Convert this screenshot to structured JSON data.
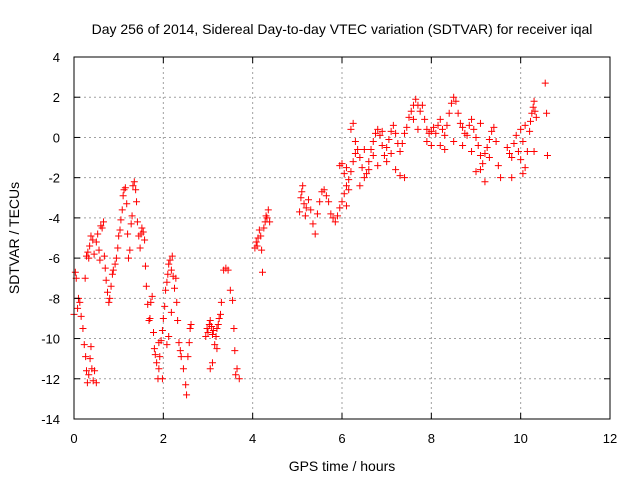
{
  "chart_data": {
    "type": "scatter",
    "title": "Day 256 of 2014, Sidereal Day-to-day VTEC variation (SDTVAR) for receiver iqal",
    "xlabel": "GPS time / hours",
    "ylabel": "SDTVAR / TECUs",
    "xlim": [
      0,
      12
    ],
    "ylim": [
      -14,
      4
    ],
    "xticks": [
      0,
      2,
      4,
      6,
      8,
      10,
      12
    ],
    "yticks": [
      -14,
      -12,
      -10,
      -8,
      -6,
      -4,
      -2,
      0,
      2,
      4
    ],
    "grid": true,
    "marker": "+",
    "color": "#ff0000",
    "series": [
      {
        "name": "SDTVAR",
        "points": [
          [
            0.0,
            -8.8
          ],
          [
            0.03,
            -6.7
          ],
          [
            0.05,
            -7.0
          ],
          [
            0.08,
            -8.5
          ],
          [
            0.1,
            -8.0
          ],
          [
            0.13,
            -8.2
          ],
          [
            0.16,
            -8.9
          ],
          [
            0.2,
            -9.5
          ],
          [
            0.23,
            -10.3
          ],
          [
            0.26,
            -10.9
          ],
          [
            0.28,
            -11.6
          ],
          [
            0.3,
            -12.2
          ],
          [
            0.33,
            -11.8
          ],
          [
            0.36,
            -11.0
          ],
          [
            0.38,
            -10.4
          ],
          [
            0.4,
            -11.5
          ],
          [
            0.43,
            -12.1
          ],
          [
            0.46,
            -11.6
          ],
          [
            0.5,
            -12.2
          ],
          [
            0.25,
            -7.0
          ],
          [
            0.28,
            -5.9
          ],
          [
            0.31,
            -5.7
          ],
          [
            0.33,
            -6.0
          ],
          [
            0.35,
            -5.4
          ],
          [
            0.38,
            -4.9
          ],
          [
            0.42,
            -5.1
          ],
          [
            0.45,
            -5.8
          ],
          [
            0.5,
            -5.2
          ],
          [
            0.53,
            -4.8
          ],
          [
            0.56,
            -5.6
          ],
          [
            0.58,
            -6.1
          ],
          [
            0.6,
            -4.4
          ],
          [
            0.63,
            -4.5
          ],
          [
            0.66,
            -4.2
          ],
          [
            0.68,
            -5.9
          ],
          [
            0.7,
            -6.5
          ],
          [
            0.72,
            -7.1
          ],
          [
            0.75,
            -7.7
          ],
          [
            0.78,
            -8.2
          ],
          [
            0.8,
            -8.0
          ],
          [
            0.83,
            -7.4
          ],
          [
            0.86,
            -6.8
          ],
          [
            0.88,
            -6.6
          ],
          [
            0.92,
            -6.3
          ],
          [
            0.95,
            -6.0
          ],
          [
            0.98,
            -5.5
          ],
          [
            1.0,
            -4.9
          ],
          [
            1.03,
            -4.6
          ],
          [
            1.05,
            -4.1
          ],
          [
            1.08,
            -3.6
          ],
          [
            1.1,
            -2.9
          ],
          [
            1.12,
            -2.6
          ],
          [
            1.15,
            -2.5
          ],
          [
            1.18,
            -3.3
          ],
          [
            1.2,
            -4.8
          ],
          [
            1.22,
            -6.0
          ],
          [
            1.25,
            -5.6
          ],
          [
            1.28,
            -4.3
          ],
          [
            1.3,
            -3.9
          ],
          [
            1.32,
            -2.4
          ],
          [
            1.35,
            -2.2
          ],
          [
            1.38,
            -2.6
          ],
          [
            1.4,
            -3.2
          ],
          [
            1.42,
            -4.2
          ],
          [
            1.45,
            -4.9
          ],
          [
            1.48,
            -5.5
          ],
          [
            1.5,
            -4.8
          ],
          [
            1.52,
            -4.5
          ],
          [
            1.55,
            -4.7
          ],
          [
            1.58,
            -5.1
          ],
          [
            1.6,
            -6.4
          ],
          [
            1.62,
            -7.4
          ],
          [
            1.65,
            -8.3
          ],
          [
            1.68,
            -9.1
          ],
          [
            1.7,
            -9.0
          ],
          [
            1.72,
            -8.2
          ],
          [
            1.75,
            -7.9
          ],
          [
            1.78,
            -9.7
          ],
          [
            1.8,
            -10.5
          ],
          [
            1.82,
            -10.8
          ],
          [
            1.85,
            -11.2
          ],
          [
            1.88,
            -12.0
          ],
          [
            1.9,
            -11.5
          ],
          [
            1.92,
            -10.9
          ],
          [
            1.95,
            -10.1
          ],
          [
            1.98,
            -9.6
          ],
          [
            2.0,
            -9.0
          ],
          [
            2.03,
            -8.4
          ],
          [
            2.05,
            -7.6
          ],
          [
            2.08,
            -7.2
          ],
          [
            2.1,
            -6.8
          ],
          [
            2.12,
            -6.3
          ],
          [
            2.15,
            -6.1
          ],
          [
            2.18,
            -6.6
          ],
          [
            2.2,
            -5.9
          ],
          [
            2.22,
            -6.9
          ],
          [
            2.25,
            -7.5
          ],
          [
            2.28,
            -7.0
          ],
          [
            2.3,
            -8.2
          ],
          [
            2.32,
            -9.1
          ],
          [
            2.35,
            -10.2
          ],
          [
            2.38,
            -10.6
          ],
          [
            2.4,
            -10.9
          ],
          [
            2.45,
            -11.5
          ],
          [
            2.5,
            -12.3
          ],
          [
            2.52,
            -12.8
          ],
          [
            2.55,
            -10.9
          ],
          [
            2.58,
            -10.2
          ],
          [
            2.6,
            -9.5
          ],
          [
            2.62,
            -9.3
          ],
          [
            2.08,
            -10.3
          ],
          [
            2.12,
            -9.9
          ],
          [
            2.18,
            -8.7
          ],
          [
            1.98,
            -12.0
          ],
          [
            1.9,
            -10.2
          ],
          [
            2.95,
            -9.9
          ],
          [
            2.98,
            -9.5
          ],
          [
            3.0,
            -9.7
          ],
          [
            3.03,
            -9.3
          ],
          [
            3.05,
            -9.1
          ],
          [
            3.08,
            -9.4
          ],
          [
            3.1,
            -9.8
          ],
          [
            3.12,
            -9.6
          ],
          [
            3.15,
            -10.3
          ],
          [
            3.18,
            -9.9
          ],
          [
            3.2,
            -9.5
          ],
          [
            3.23,
            -9.3
          ],
          [
            3.25,
            -9.0
          ],
          [
            3.28,
            -8.8
          ],
          [
            3.3,
            -8.2
          ],
          [
            3.05,
            -11.5
          ],
          [
            3.1,
            -11.2
          ],
          [
            3.2,
            -10.5
          ],
          [
            3.35,
            -6.6
          ],
          [
            3.4,
            -6.5
          ],
          [
            3.45,
            -6.6
          ],
          [
            3.5,
            -7.6
          ],
          [
            3.55,
            -8.1
          ],
          [
            3.58,
            -9.5
          ],
          [
            3.6,
            -10.6
          ],
          [
            3.62,
            -11.8
          ],
          [
            3.65,
            -11.5
          ],
          [
            3.7,
            -12.0
          ],
          [
            4.05,
            -5.5
          ],
          [
            4.08,
            -5.2
          ],
          [
            4.1,
            -5.4
          ],
          [
            4.12,
            -5.0
          ],
          [
            4.15,
            -4.6
          ],
          [
            4.18,
            -4.9
          ],
          [
            4.2,
            -5.6
          ],
          [
            4.22,
            -6.7
          ],
          [
            4.25,
            -4.5
          ],
          [
            4.28,
            -4.2
          ],
          [
            4.3,
            -3.9
          ],
          [
            4.32,
            -4.0
          ],
          [
            4.35,
            -3.6
          ],
          [
            4.38,
            -4.2
          ],
          [
            5.05,
            -3.7
          ],
          [
            5.08,
            -3.0
          ],
          [
            5.1,
            -2.7
          ],
          [
            5.12,
            -2.4
          ],
          [
            5.15,
            -3.3
          ],
          [
            5.18,
            -3.9
          ],
          [
            5.2,
            -3.5
          ],
          [
            5.25,
            -3.1
          ],
          [
            5.3,
            -3.6
          ],
          [
            5.35,
            -4.3
          ],
          [
            5.4,
            -4.8
          ],
          [
            5.45,
            -3.8
          ],
          [
            5.5,
            -3.2
          ],
          [
            5.55,
            -2.7
          ],
          [
            5.6,
            -2.6
          ],
          [
            5.65,
            -2.9
          ],
          [
            5.7,
            -3.2
          ],
          [
            5.75,
            -3.8
          ],
          [
            5.8,
            -4.0
          ],
          [
            5.85,
            -4.2
          ],
          [
            5.9,
            -3.9
          ],
          [
            5.95,
            -3.5
          ],
          [
            6.0,
            -3.2
          ],
          [
            6.05,
            -2.8
          ],
          [
            6.1,
            -2.4
          ],
          [
            6.15,
            -2.1
          ],
          [
            6.2,
            -1.7
          ],
          [
            6.25,
            -1.2
          ],
          [
            6.3,
            -0.8
          ],
          [
            6.35,
            -0.6
          ],
          [
            6.4,
            -1.0
          ],
          [
            6.45,
            -1.5
          ],
          [
            6.5,
            -2.0
          ],
          [
            6.55,
            -1.8
          ],
          [
            6.6,
            -1.2
          ],
          [
            6.65,
            -0.6
          ],
          [
            6.7,
            -0.2
          ],
          [
            6.75,
            0.2
          ],
          [
            6.8,
            0.4
          ],
          [
            6.85,
            0.1
          ],
          [
            6.9,
            -0.4
          ],
          [
            6.95,
            -0.9
          ],
          [
            7.0,
            -0.5
          ],
          [
            7.05,
            -0.1
          ],
          [
            7.1,
            0.3
          ],
          [
            7.15,
            0.6
          ],
          [
            7.2,
            0.2
          ],
          [
            7.25,
            -0.3
          ],
          [
            7.3,
            -0.7
          ],
          [
            7.35,
            -0.3
          ],
          [
            6.0,
            -1.3
          ],
          [
            6.05,
            -1.8
          ],
          [
            6.1,
            -1.5
          ],
          [
            6.2,
            0.4
          ],
          [
            6.25,
            0.7
          ],
          [
            6.3,
            -0.2
          ],
          [
            5.95,
            -1.4
          ],
          [
            6.1,
            -3.4
          ],
          [
            6.15,
            -2.6
          ],
          [
            6.4,
            -2.4
          ],
          [
            6.5,
            -0.6
          ],
          [
            6.6,
            -1.6
          ],
          [
            6.7,
            -0.9
          ],
          [
            6.8,
            -1.4
          ],
          [
            6.9,
            0.3
          ],
          [
            7.0,
            -1.2
          ],
          [
            7.1,
            -0.8
          ],
          [
            7.2,
            -1.6
          ],
          [
            7.3,
            -1.9
          ],
          [
            7.4,
            -2.0
          ],
          [
            7.4,
            0.2
          ],
          [
            7.45,
            0.5
          ],
          [
            7.5,
            1.0
          ],
          [
            7.55,
            1.3
          ],
          [
            7.6,
            1.6
          ],
          [
            7.65,
            1.9
          ],
          [
            7.7,
            1.6
          ],
          [
            7.75,
            1.3
          ],
          [
            7.8,
            1.6
          ],
          [
            7.85,
            0.9
          ],
          [
            7.9,
            0.4
          ],
          [
            7.95,
            0.2
          ],
          [
            8.0,
            0.3
          ],
          [
            8.05,
            0.5
          ],
          [
            8.1,
            0.2
          ],
          [
            8.15,
            0.6
          ],
          [
            8.2,
            0.9
          ],
          [
            8.25,
            0.4
          ],
          [
            8.3,
            0.1
          ],
          [
            8.35,
            0.6
          ],
          [
            8.4,
            1.2
          ],
          [
            8.45,
            1.7
          ],
          [
            8.5,
            2.0
          ],
          [
            8.55,
            1.8
          ],
          [
            8.6,
            1.2
          ],
          [
            8.65,
            0.7
          ],
          [
            8.7,
            0.5
          ],
          [
            8.75,
            0.2
          ],
          [
            8.8,
            0.1
          ],
          [
            8.85,
            0.6
          ],
          [
            8.9,
            0.9
          ],
          [
            8.95,
            0.4
          ],
          [
            9.0,
            0.0
          ],
          [
            9.05,
            -0.4
          ],
          [
            9.1,
            -0.9
          ],
          [
            9.15,
            -1.3
          ],
          [
            9.2,
            -0.8
          ],
          [
            9.25,
            -0.5
          ],
          [
            9.3,
            -0.1
          ],
          [
            9.35,
            0.3
          ],
          [
            9.4,
            0.5
          ],
          [
            9.45,
            -0.2
          ],
          [
            9.5,
            -1.4
          ],
          [
            9.55,
            -2.0
          ],
          [
            8.2,
            -0.4
          ],
          [
            8.3,
            -0.6
          ],
          [
            8.5,
            -0.2
          ],
          [
            8.7,
            -0.4
          ],
          [
            8.9,
            -0.7
          ],
          [
            9.0,
            -1.7
          ],
          [
            9.1,
            -1.6
          ],
          [
            9.2,
            -2.2
          ],
          [
            9.3,
            -1.0
          ],
          [
            9.1,
            0.7
          ],
          [
            8.0,
            -0.4
          ],
          [
            7.9,
            -0.2
          ],
          [
            7.6,
            0.9
          ],
          [
            7.7,
            0.4
          ],
          [
            9.7,
            -0.5
          ],
          [
            9.75,
            -0.8
          ],
          [
            9.8,
            -1.0
          ],
          [
            9.85,
            -0.3
          ],
          [
            9.9,
            0.1
          ],
          [
            9.95,
            -0.7
          ],
          [
            10.0,
            -1.1
          ],
          [
            10.05,
            -1.8
          ],
          [
            10.1,
            -1.5
          ],
          [
            10.15,
            -0.7
          ],
          [
            10.2,
            0.3
          ],
          [
            10.22,
            0.8
          ],
          [
            10.25,
            1.2
          ],
          [
            10.28,
            1.5
          ],
          [
            10.3,
            1.8
          ],
          [
            10.32,
            1.3
          ],
          [
            10.35,
            1.0
          ],
          [
            10.0,
            0.4
          ],
          [
            10.05,
            -0.2
          ],
          [
            9.8,
            -2.0
          ],
          [
            10.1,
            0.6
          ],
          [
            10.3,
            -0.7
          ],
          [
            10.55,
            2.7
          ],
          [
            10.58,
            1.2
          ],
          [
            10.6,
            -0.9
          ]
        ]
      }
    ]
  }
}
